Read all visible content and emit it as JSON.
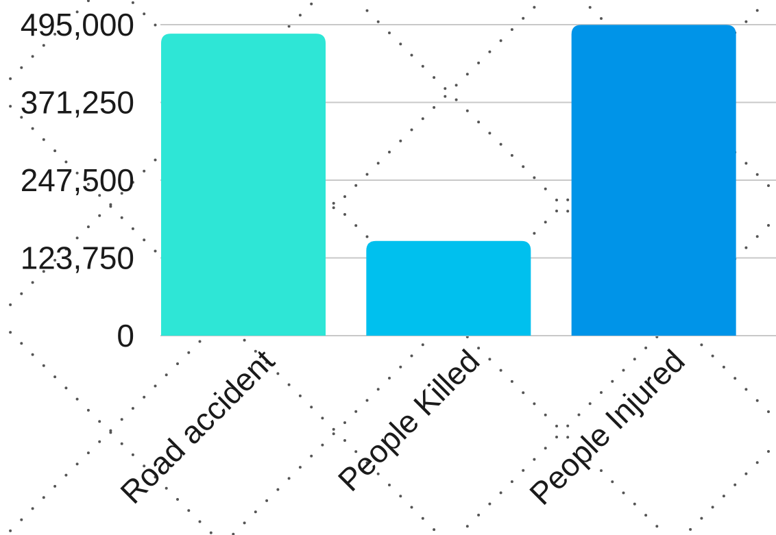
{
  "chart_data": {
    "type": "bar",
    "categories": [
      "Road accident",
      "People Killed",
      "People Injured"
    ],
    "values": [
      480652,
      150785,
      494624
    ],
    "ylim": [
      0,
      495000
    ],
    "yticks": [
      0,
      123750,
      247500,
      371250,
      495000
    ],
    "ytick_labels": [
      "0",
      "123,750",
      "247,500",
      "371,250",
      "495,000"
    ],
    "title": "",
    "xlabel": "",
    "ylabel": "",
    "grid": true,
    "legend": "none",
    "colors": [
      "#2ee6d6",
      "#00c0ee",
      "#0094e8"
    ],
    "grid_color": "#c8c8c8",
    "background_pattern_color": "#555555"
  }
}
